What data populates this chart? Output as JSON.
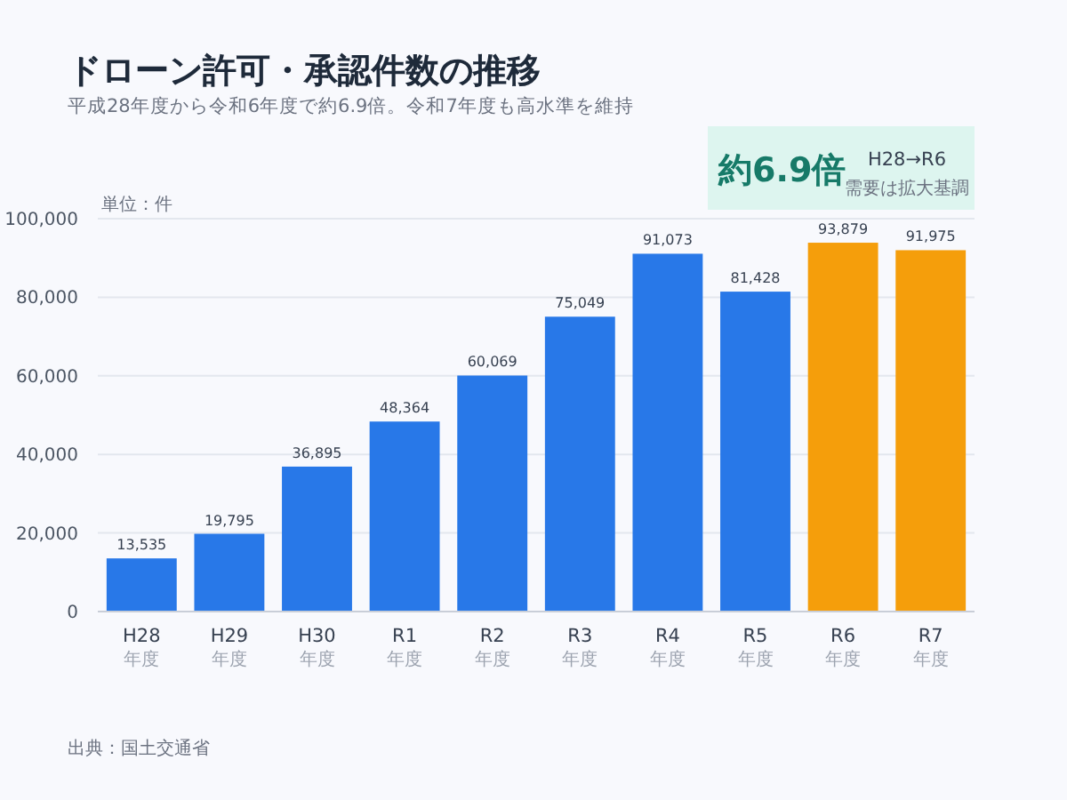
{
  "chart_data": {
    "type": "bar",
    "title": "ドローン許可・承認件数の推移",
    "subtitle": "平成28年度から令和6年度で約6.9倍。令和7年度も高水準を維持",
    "categories": [
      "H28\n年度",
      "H29\n年度",
      "H30\n年度",
      "R1\n年度",
      "R2\n年度",
      "R3\n年度",
      "R4\n年度",
      "R5\n年度",
      "R6\n年度",
      "R7\n年度"
    ],
    "values": [
      13535,
      19795,
      36895,
      48364,
      60069,
      75049,
      91073,
      81428,
      93879,
      91975
    ],
    "colors": [
      "#2878e8",
      "#2878e8",
      "#2878e8",
      "#2878e8",
      "#2878e8",
      "#2878e8",
      "#2878e8",
      "#2878e8",
      "#f59e0b",
      "#f59e0b"
    ],
    "ylim": [
      0,
      100000
    ],
    "yticks": [
      {
        "value": 0,
        "label": "0"
      },
      {
        "value": 20000,
        "label": "20,000"
      },
      {
        "value": 40000,
        "label": "40,000"
      },
      {
        "value": 60000,
        "label": "60,000"
      },
      {
        "value": 80000,
        "label": "80,000"
      },
      {
        "value": 100000,
        "label": "100,000"
      }
    ],
    "value_labels": [
      "13,535",
      "19,795",
      "36,895",
      "48,364",
      "60,069",
      "75,049",
      "91,073",
      "81,428",
      "93,879",
      "91,975"
    ],
    "grid": "y",
    "annotations": [
      "単位：件",
      "約6.9倍",
      "H28→R6",
      "需要は拡大基調",
      "出典：国土交通省"
    ]
  }
}
